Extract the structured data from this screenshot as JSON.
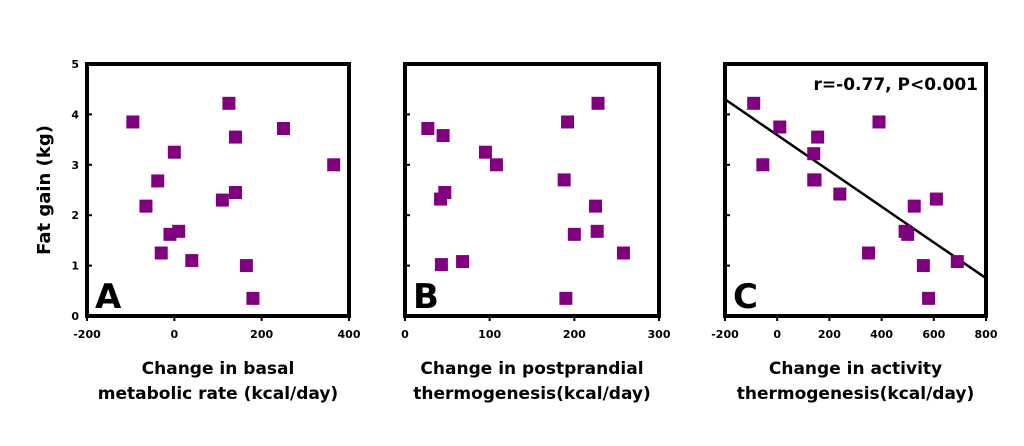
{
  "marker_color": "#800080",
  "axis_color": "#000000",
  "shared_ylabel": "Fat gain (kg)",
  "chart_data": [
    {
      "type": "scatter",
      "panel": "A",
      "xlabel": [
        "Change in basal",
        "metabolic rate (kcal/day)"
      ],
      "ylabel": "Fat gain (kg)",
      "xlim": [
        -200,
        400
      ],
      "ylim": [
        0,
        5
      ],
      "xticks": [
        -200,
        0,
        200,
        400
      ],
      "yticks": [
        0,
        1,
        2,
        3,
        4,
        5
      ],
      "x": [
        -95,
        -65,
        -38,
        -30,
        -10,
        0,
        10,
        40,
        110,
        125,
        140,
        140,
        165,
        180,
        250,
        365
      ],
      "y": [
        3.85,
        2.18,
        2.68,
        1.25,
        1.62,
        3.25,
        1.68,
        1.1,
        2.3,
        4.22,
        3.55,
        2.45,
        1.0,
        0.35,
        3.72,
        3.0
      ],
      "fit_line": null,
      "annotation": ""
    },
    {
      "type": "scatter",
      "panel": "B",
      "xlabel": [
        "Change in postprandial",
        "thermogenesis(kcal/day)"
      ],
      "ylabel": "",
      "xlim": [
        0,
        300
      ],
      "ylim": [
        0,
        5
      ],
      "xticks": [
        0,
        100,
        200,
        300
      ],
      "yticks": [
        0,
        1,
        2,
        3,
        4,
        5
      ],
      "x": [
        27,
        42,
        45,
        47,
        43,
        68,
        95,
        108,
        188,
        190,
        192,
        200,
        225,
        227,
        228,
        258
      ],
      "y": [
        3.72,
        2.32,
        3.58,
        2.45,
        1.02,
        1.08,
        3.25,
        3.0,
        2.7,
        0.35,
        3.85,
        1.62,
        2.18,
        1.68,
        4.22,
        1.25
      ],
      "fit_line": null,
      "annotation": ""
    },
    {
      "type": "scatter",
      "panel": "C",
      "xlabel": [
        "Change in activity",
        "thermogenesis(kcal/day)"
      ],
      "ylabel": "",
      "xlim": [
        -200,
        800
      ],
      "ylim": [
        0,
        5
      ],
      "xticks": [
        -200,
        0,
        200,
        400,
        600,
        800
      ],
      "yticks": [
        0,
        1,
        2,
        3,
        4,
        5
      ],
      "x": [
        -90,
        -55,
        10,
        140,
        145,
        155,
        140,
        240,
        350,
        390,
        490,
        500,
        525,
        560,
        580,
        610,
        690
      ],
      "y": [
        4.22,
        3.0,
        3.75,
        3.22,
        2.7,
        3.55,
        2.7,
        2.42,
        1.25,
        3.85,
        1.68,
        1.62,
        2.18,
        1.0,
        0.35,
        2.32,
        1.08
      ],
      "fit_line": {
        "x": [
          -200,
          800
        ],
        "y": [
          4.3,
          0.75
        ]
      },
      "annotation": "r=-0.77, P<0.001"
    }
  ]
}
